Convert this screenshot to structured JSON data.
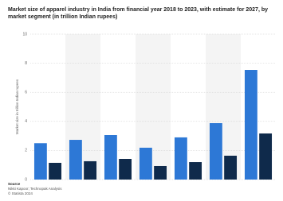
{
  "chart_data": {
    "type": "bar",
    "title": "Market size of apparel industry in India from financial year 2018 to 2023, with estimate for 2027, by market segment (in trillion Indian rupees)",
    "y_label": "Market size in trillion Indian rupees",
    "categories": [
      null,
      null,
      null,
      null,
      null,
      null,
      null
    ],
    "series": [
      {
        "color": "#2d78d6",
        "values": [
          2.5,
          2.73,
          3.06,
          2.19,
          2.9,
          3.88,
          7.54
        ]
      },
      {
        "color": "#0f2a4b",
        "values": [
          1.15,
          1.26,
          1.42,
          0.93,
          1.2,
          1.64,
          3.17
        ]
      }
    ],
    "ylim": [
      0,
      10
    ],
    "yticks": [
      0,
      2,
      4,
      6,
      8,
      10
    ],
    "grid": true,
    "source": [
      "Source",
      "Nikki Kapoor; Technopak Analysis",
      "© Statista 2024"
    ]
  }
}
